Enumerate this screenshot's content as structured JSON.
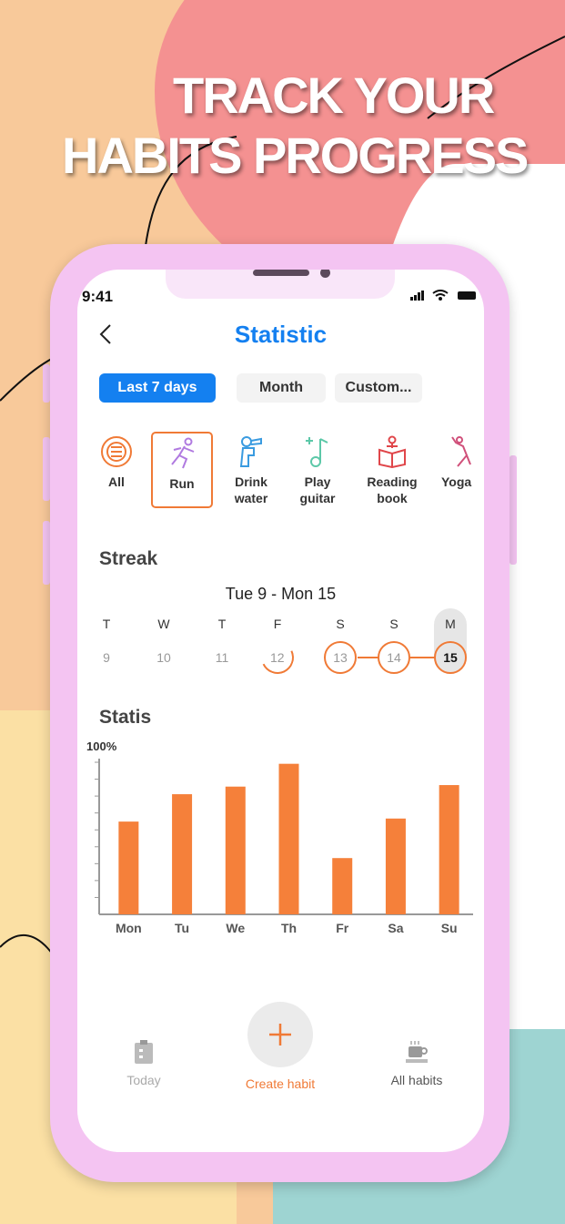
{
  "headline": {
    "line1": "TRACK YOUR",
    "line2": "HABITS PROGRESS"
  },
  "status_bar": {
    "time": "9:41"
  },
  "header": {
    "title": "Statistic",
    "back_icon": "chevron-left-icon"
  },
  "range_tabs": [
    {
      "label": "Last 7 days",
      "active": true
    },
    {
      "label": "Month",
      "active": false
    },
    {
      "label": "Custom...",
      "active": false
    }
  ],
  "habits": [
    {
      "line1": "All",
      "line2": "",
      "icon": "all-icon",
      "color": "#f07a36",
      "selected": false
    },
    {
      "line1": "Run",
      "line2": "",
      "icon": "run-icon",
      "color": "#b07ae0",
      "selected": true
    },
    {
      "line1": "Drink",
      "line2": "water",
      "icon": "drink-water-icon",
      "color": "#3a9be0",
      "selected": false
    },
    {
      "line1": "Play",
      "line2": "guitar",
      "icon": "music-note-icon",
      "color": "#5cc8a8",
      "selected": false
    },
    {
      "line1": "Reading",
      "line2": "book",
      "icon": "reading-book-icon",
      "color": "#e0464a",
      "selected": false
    },
    {
      "line1": "Yoga",
      "line2": "",
      "icon": "yoga-icon",
      "color": "#d0507a",
      "selected": false
    }
  ],
  "streak": {
    "title": "Streak",
    "range": "Tue 9 - Mon 15",
    "days": [
      {
        "letter": "T",
        "num": "9",
        "done": false
      },
      {
        "letter": "W",
        "num": "10",
        "done": false
      },
      {
        "letter": "T",
        "num": "11",
        "done": false
      },
      {
        "letter": "F",
        "num": "12",
        "done": "partial"
      },
      {
        "letter": "S",
        "num": "13",
        "done": true
      },
      {
        "letter": "S",
        "num": "14",
        "done": true
      },
      {
        "letter": "M",
        "num": "15",
        "done": true,
        "today": true
      }
    ]
  },
  "statis": {
    "title": "Statis"
  },
  "chart_data": {
    "type": "bar",
    "categories": [
      "Mon",
      "Tu",
      "We",
      "Th",
      "Fr",
      "Sa",
      "Su"
    ],
    "values": [
      61,
      79,
      84,
      99,
      37,
      63,
      85
    ],
    "ylabel": "100%",
    "ylim": [
      0,
      100
    ],
    "color": "#f5803a",
    "grid": false
  },
  "tab_bar": {
    "today": "Today",
    "create": "Create habit",
    "all": "All habits"
  },
  "colors": {
    "accent": "#1480f0",
    "orange": "#f07a36"
  }
}
